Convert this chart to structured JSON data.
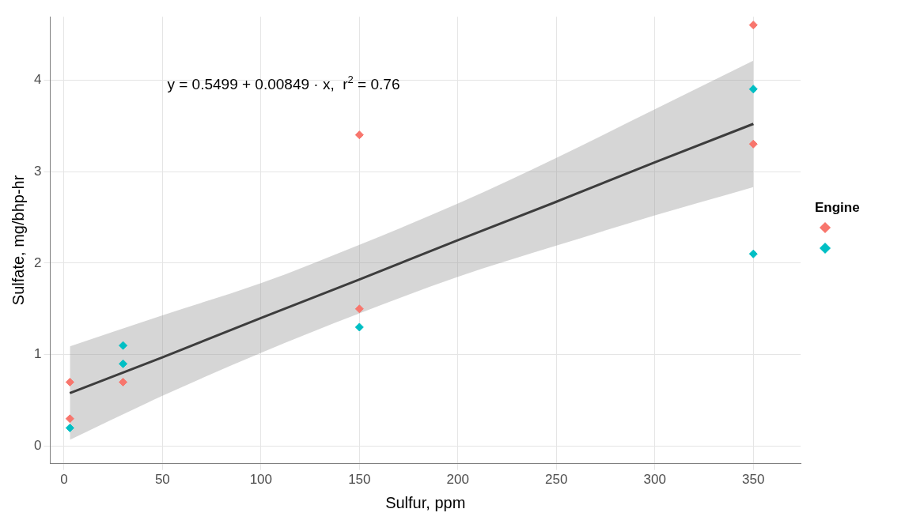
{
  "chart_data": {
    "type": "scatter",
    "xlabel": "Sulfur, ppm",
    "ylabel": "Sulfate, mg/bhp-hr",
    "legend_title": "Engine",
    "grid": true,
    "xlim": [
      -7,
      374
    ],
    "xticks": [
      0,
      50,
      100,
      150,
      200,
      250,
      300,
      350
    ],
    "ylim": [
      -0.19,
      4.69
    ],
    "yticks": [
      0,
      1,
      2,
      3,
      4
    ],
    "annotations": [
      "y = 0.5499 + 0.00849 · x,  r$^{2}$ = 0.76"
    ],
    "series": [
      {
        "color": "#f8766d",
        "marker": "diamond",
        "x": [
          3,
          3,
          30,
          150,
          150,
          350,
          350
        ],
        "values": [
          0.7,
          0.3,
          0.7,
          3.4,
          1.5,
          4.6,
          3.3
        ]
      },
      {
        "color": "#00bfc4",
        "marker": "diamond",
        "x": [
          3,
          30,
          30,
          150,
          350,
          350
        ],
        "values": [
          0.2,
          1.1,
          0.9,
          1.3,
          3.9,
          2.1
        ]
      },
      {
        "type": "line",
        "color": "#000000",
        "x": [
          3,
          50,
          100,
          150,
          200,
          250,
          300,
          350
        ],
        "values": [
          0.58,
          0.97,
          1.4,
          1.82,
          2.25,
          2.67,
          3.1,
          3.52
        ],
        "lower": [
          0.07,
          0.55,
          1.02,
          1.45,
          1.85,
          2.19,
          2.52,
          2.83
        ],
        "upper": [
          1.09,
          1.43,
          1.78,
          2.2,
          2.65,
          3.15,
          3.68,
          4.21
        ]
      }
    ]
  }
}
